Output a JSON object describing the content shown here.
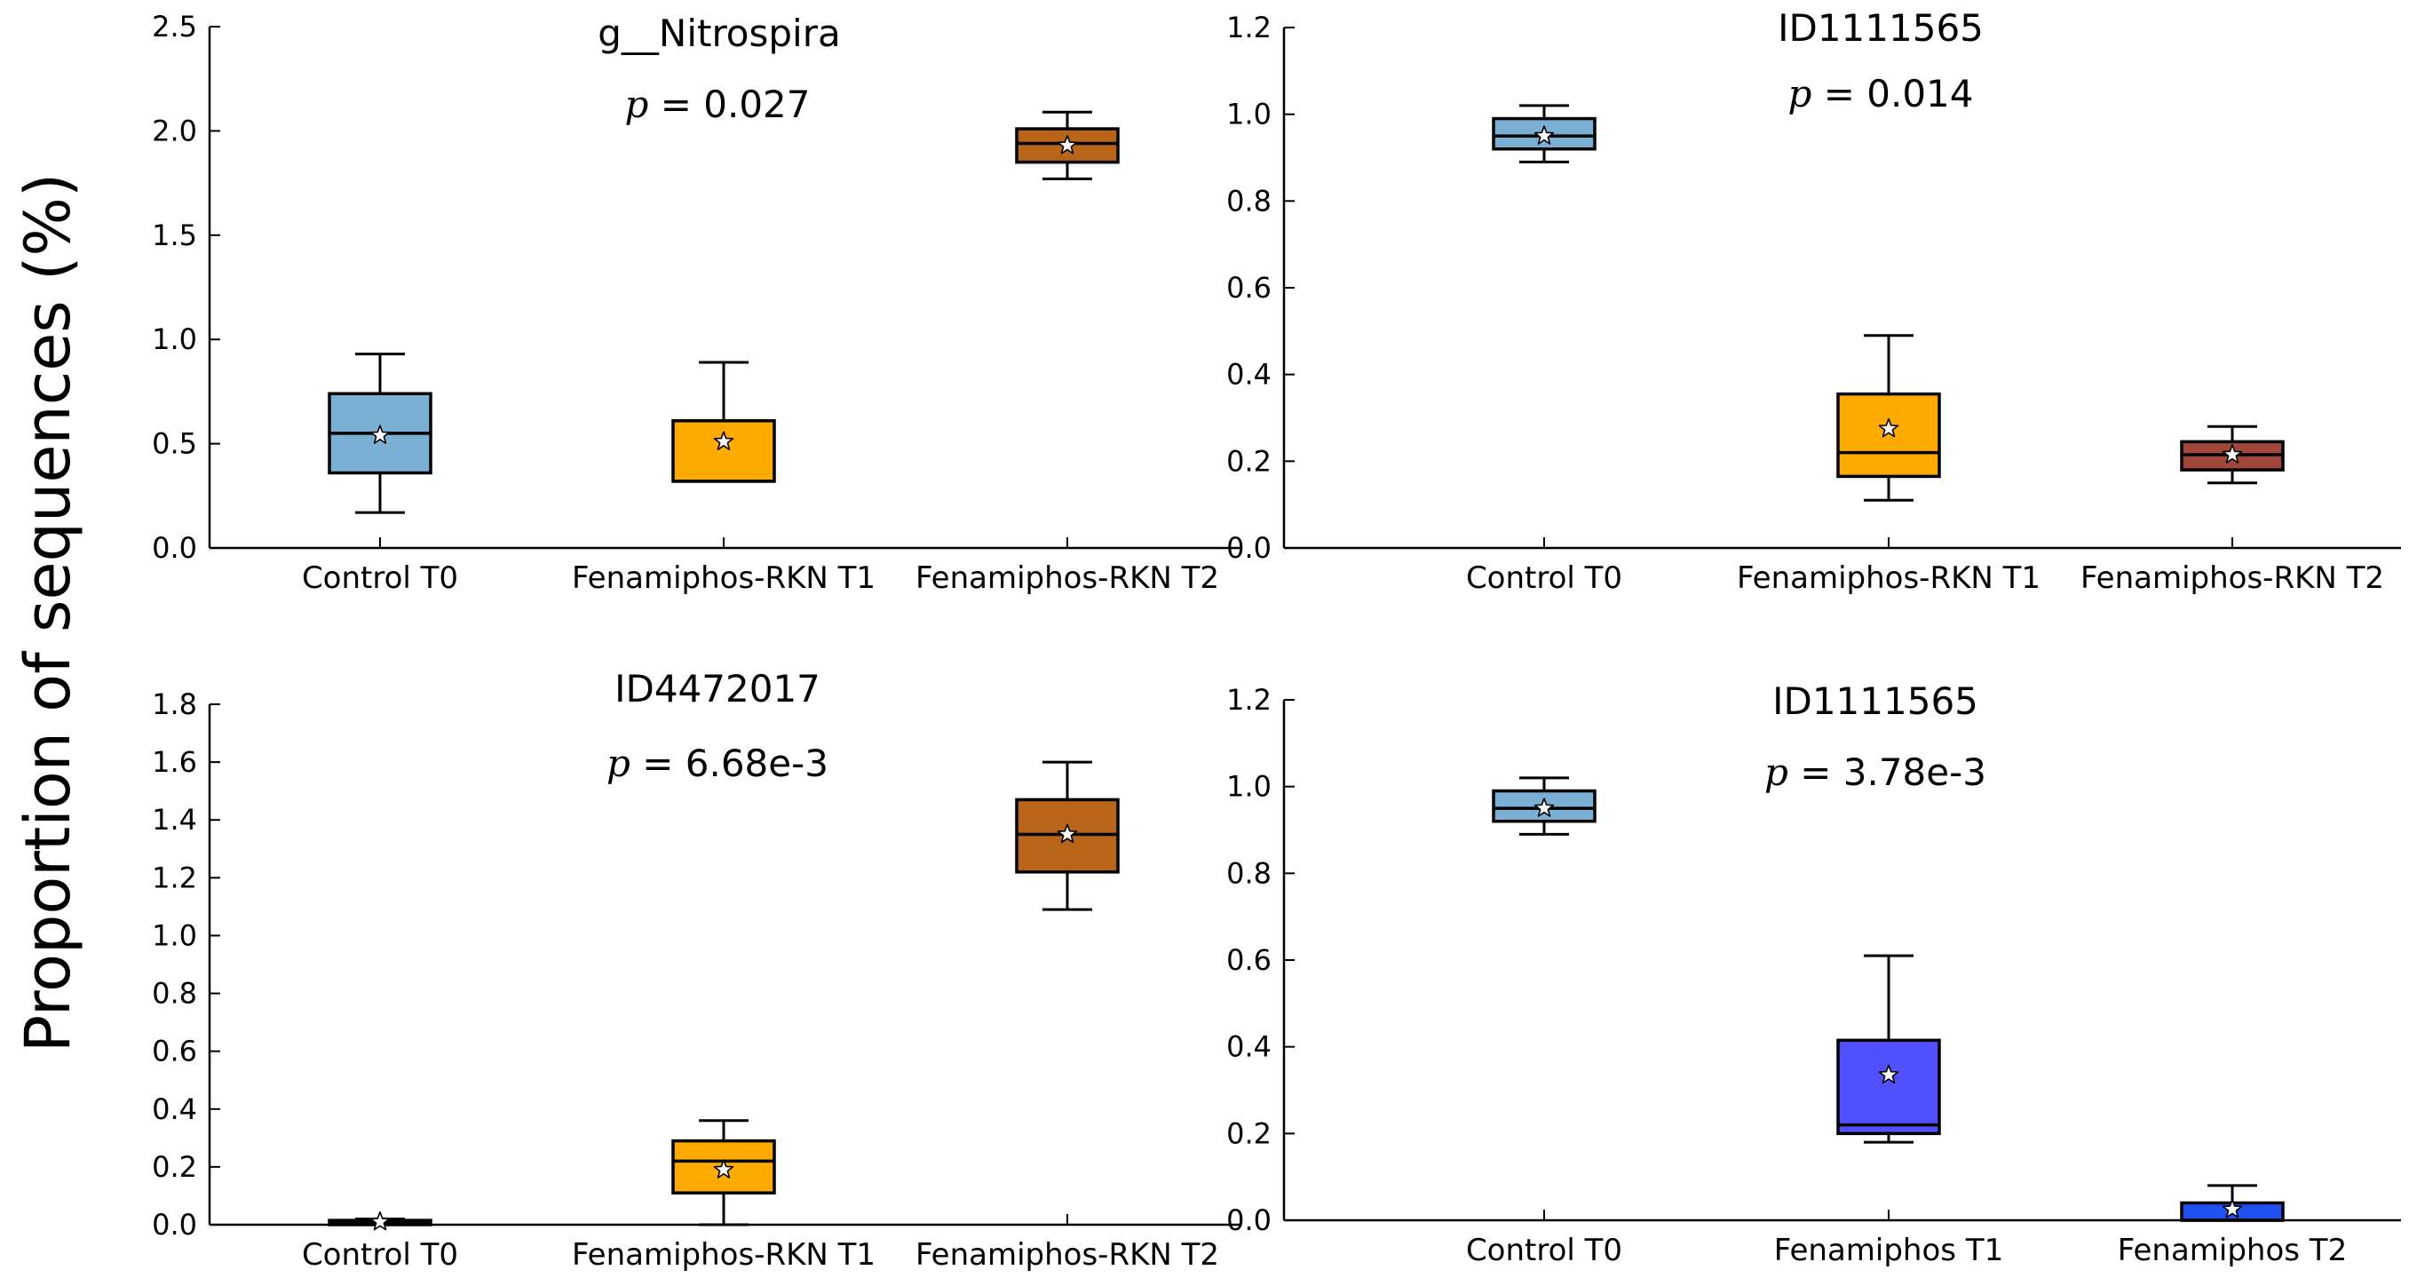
{
  "figure": {
    "y_label": "Proportion of sequences (%)"
  },
  "chart_data": [
    {
      "type": "box",
      "title": "g__Nitrospira",
      "p_prefix": "p",
      "p_value": "= 0.027",
      "ylim": [
        0,
        2.5
      ],
      "yticks": [
        "0.0",
        "0.5",
        "1.0",
        "1.5",
        "2.0",
        "2.5"
      ],
      "ytick_values": [
        0,
        0.5,
        1.0,
        1.5,
        2.0,
        2.5
      ],
      "categories": [
        "Control T0",
        "Fenamiphos-RKN T1",
        "Fenamiphos-RKN T2"
      ],
      "boxes": [
        {
          "whisker_low": 0.17,
          "q1": 0.36,
          "median": 0.55,
          "q3": 0.74,
          "whisker_high": 0.93,
          "mean": 0.54,
          "color": "#7BAFD4"
        },
        {
          "whisker_low": 0.32,
          "q1": 0.32,
          "median": 0.32,
          "q3": 0.61,
          "whisker_high": 0.89,
          "mean": 0.51,
          "color": "#FFAA00"
        },
        {
          "whisker_low": 1.77,
          "q1": 1.85,
          "median": 1.94,
          "q3": 2.01,
          "whisker_high": 2.09,
          "mean": 1.93,
          "color": "#B8651A"
        }
      ]
    },
    {
      "type": "box",
      "title": "ID1111565",
      "p_prefix": "p",
      "p_value": "= 0.014",
      "ylim": [
        0,
        1.2
      ],
      "yticks": [
        "0.0",
        "0.2",
        "0.4",
        "0.6",
        "0.8",
        "1.0",
        "1.2"
      ],
      "ytick_values": [
        0,
        0.2,
        0.4,
        0.6,
        0.8,
        1.0,
        1.2
      ],
      "categories": [
        "Control T0",
        "Fenamiphos-RKN T1",
        "Fenamiphos-RKN T2"
      ],
      "boxes": [
        {
          "whisker_low": 0.89,
          "q1": 0.92,
          "median": 0.95,
          "q3": 0.99,
          "whisker_high": 1.02,
          "mean": 0.95,
          "color": "#7BAFD4"
        },
        {
          "whisker_low": 0.11,
          "q1": 0.165,
          "median": 0.22,
          "q3": 0.355,
          "whisker_high": 0.49,
          "mean": 0.275,
          "color": "#FFAA00"
        },
        {
          "whisker_low": 0.15,
          "q1": 0.18,
          "median": 0.215,
          "q3": 0.245,
          "whisker_high": 0.28,
          "mean": 0.215,
          "color": "#A0463A"
        }
      ]
    },
    {
      "type": "box",
      "title": "ID4472017",
      "p_prefix": "p",
      "p_value": "= 6.68e-3",
      "ylim": [
        0,
        1.8
      ],
      "yticks": [
        "0.0",
        "0.2",
        "0.4",
        "0.6",
        "0.8",
        "1.0",
        "1.2",
        "1.4",
        "1.6",
        "1.8"
      ],
      "ytick_values": [
        0,
        0.2,
        0.4,
        0.6,
        0.8,
        1.0,
        1.2,
        1.4,
        1.6,
        1.8
      ],
      "categories": [
        "Control T0",
        "Fenamiphos-RKN T1",
        "Fenamiphos-RKN T2"
      ],
      "boxes": [
        {
          "whisker_low": 0.0,
          "q1": 0.0,
          "median": 0.01,
          "q3": 0.015,
          "whisker_high": 0.02,
          "mean": 0.01,
          "color": "#7BAFD4"
        },
        {
          "whisker_low": 0.0,
          "q1": 0.11,
          "median": 0.22,
          "q3": 0.29,
          "whisker_high": 0.36,
          "mean": 0.19,
          "color": "#FFAA00"
        },
        {
          "whisker_low": 1.09,
          "q1": 1.22,
          "median": 1.35,
          "q3": 1.47,
          "whisker_high": 1.6,
          "mean": 1.35,
          "color": "#B8651A"
        }
      ]
    },
    {
      "type": "box",
      "title": "ID1111565",
      "p_prefix": "p",
      "p_value": "= 3.78e-3",
      "ylim": [
        0,
        1.2
      ],
      "yticks": [
        "0.0",
        "0.2",
        "0.4",
        "0.6",
        "0.8",
        "1.0",
        "1.2"
      ],
      "ytick_values": [
        0,
        0.2,
        0.4,
        0.6,
        0.8,
        1.0,
        1.2
      ],
      "categories": [
        "Control T0",
        "Fenamiphos T1",
        "Fenamiphos T2"
      ],
      "boxes": [
        {
          "whisker_low": 0.89,
          "q1": 0.92,
          "median": 0.95,
          "q3": 0.99,
          "whisker_high": 1.02,
          "mean": 0.95,
          "color": "#7BAFD4"
        },
        {
          "whisker_low": 0.18,
          "q1": 0.2,
          "median": 0.22,
          "q3": 0.415,
          "whisker_high": 0.61,
          "mean": 0.335,
          "color": "#5050FF"
        },
        {
          "whisker_low": 0.0,
          "q1": 0.0,
          "median": 0.0,
          "q3": 0.04,
          "whisker_high": 0.08,
          "mean": 0.025,
          "color": "#2050F0"
        }
      ]
    }
  ]
}
